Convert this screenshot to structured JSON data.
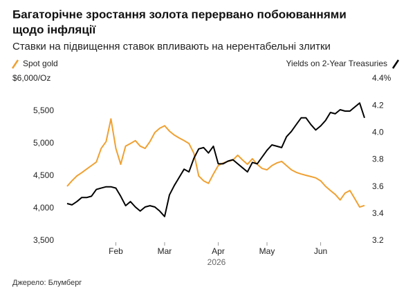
{
  "chart_data": {
    "type": "line",
    "title": [
      "Багаторічне зростання золота перервано побоюваннями",
      "щодо інфляції"
    ],
    "subtitle": "Ставки на підвищення ставок впливають на нерентабельні злитки",
    "xlabel": "2026",
    "source": "Джерело: Блумберг",
    "categories": [
      null,
      null,
      null,
      null,
      null,
      null,
      null,
      null,
      null,
      null,
      "Feb",
      null,
      null,
      null,
      null,
      null,
      null,
      null,
      null,
      null,
      "Mar",
      null,
      null,
      null,
      null,
      null,
      null,
      null,
      null,
      null,
      null,
      "Apr",
      null,
      null,
      null,
      null,
      null,
      null,
      null,
      null,
      null,
      "May",
      null,
      null,
      null,
      null,
      null,
      null,
      null,
      null,
      null,
      null,
      "Jun",
      null,
      null,
      null,
      null,
      null,
      null,
      null,
      null,
      null
    ],
    "ylim": [
      3500,
      6000
    ],
    "yticks": [
      {
        "value": 3500,
        "label": "3,500"
      },
      {
        "value": 4000,
        "label": "4,000"
      },
      {
        "value": 4500,
        "label": "4,500"
      },
      {
        "value": 5000,
        "label": "5,000"
      },
      {
        "value": 5500,
        "label": "5,500"
      },
      {
        "value": 6000,
        "label": "$6,000/Oz"
      }
    ],
    "y2lim": [
      3.2,
      4.4
    ],
    "y2ticks": [
      3.2,
      3.4,
      3.6,
      3.8,
      {
        "value": 4,
        "label": "4.0"
      },
      4.2,
      {
        "value": 4.4,
        "label": "4.4%"
      }
    ],
    "grid": false,
    "series": [
      {
        "name": "Spot gold",
        "color": "#f0a030",
        "axis": "y",
        "values": [
          4340,
          4425,
          4500,
          4550,
          4605,
          4660,
          4715,
          4925,
          5030,
          5380,
          4925,
          4680,
          4960,
          5000,
          5045,
          4960,
          4925,
          5030,
          5170,
          5235,
          5275,
          5190,
          5130,
          5085,
          5045,
          5000,
          4850,
          4500,
          4425,
          4385,
          4530,
          4660,
          4700,
          4725,
          4745,
          4820,
          4745,
          4680,
          4765,
          4680,
          4615,
          4595,
          4660,
          4700,
          4725,
          4660,
          4595,
          4555,
          4530,
          4510,
          4490,
          4470,
          4425,
          4340,
          4275,
          4215,
          4130,
          4235,
          4275,
          4150,
          4020,
          4045
        ]
      },
      {
        "name": "Yields on 2-Year Treasuries",
        "color": "#000000",
        "axis": "y2",
        "values": [
          3.476,
          3.466,
          3.49,
          3.52,
          3.52,
          3.53,
          3.58,
          3.59,
          3.6,
          3.6,
          3.59,
          3.53,
          3.46,
          3.49,
          3.45,
          3.42,
          3.45,
          3.46,
          3.45,
          3.42,
          3.38,
          3.54,
          3.61,
          3.67,
          3.73,
          3.71,
          3.81,
          3.88,
          3.89,
          3.85,
          3.9,
          3.77,
          3.77,
          3.79,
          3.8,
          3.77,
          3.74,
          3.71,
          3.78,
          3.77,
          3.82,
          3.87,
          3.91,
          3.9,
          3.89,
          3.97,
          4.01,
          4.06,
          4.11,
          4.11,
          4.06,
          4.02,
          4.05,
          4.09,
          4.15,
          4.14,
          4.17,
          4.16,
          4.16,
          4.19,
          4.22,
          4.11
        ]
      }
    ]
  }
}
